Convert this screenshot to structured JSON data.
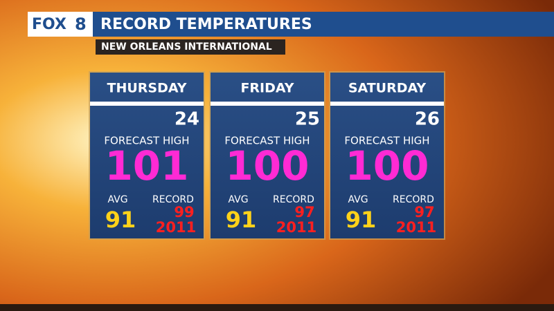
{
  "header": {
    "logo": {
      "brand": "FOX",
      "number": "8"
    },
    "title": "RECORD TEMPERATURES",
    "subtitle": "NEW ORLEANS INTERNATIONAL"
  },
  "cards": [
    {
      "day": "THURSDAY",
      "date": 24,
      "forecast_label": "FORECAST HIGH",
      "forecast_high": 101,
      "avg_label": "AVG",
      "avg": 91,
      "record_label": "RECORD",
      "record": 99,
      "record_year": 2011
    },
    {
      "day": "FRIDAY",
      "date": 25,
      "forecast_label": "FORECAST HIGH",
      "forecast_high": 100,
      "avg_label": "AVG",
      "avg": 91,
      "record_label": "RECORD",
      "record": 97,
      "record_year": 2011
    },
    {
      "day": "SATURDAY",
      "date": 26,
      "forecast_label": "FORECAST HIGH",
      "forecast_high": 100,
      "avg_label": "AVG",
      "avg": 91,
      "record_label": "RECORD",
      "record": 97,
      "record_year": 2011
    }
  ]
}
